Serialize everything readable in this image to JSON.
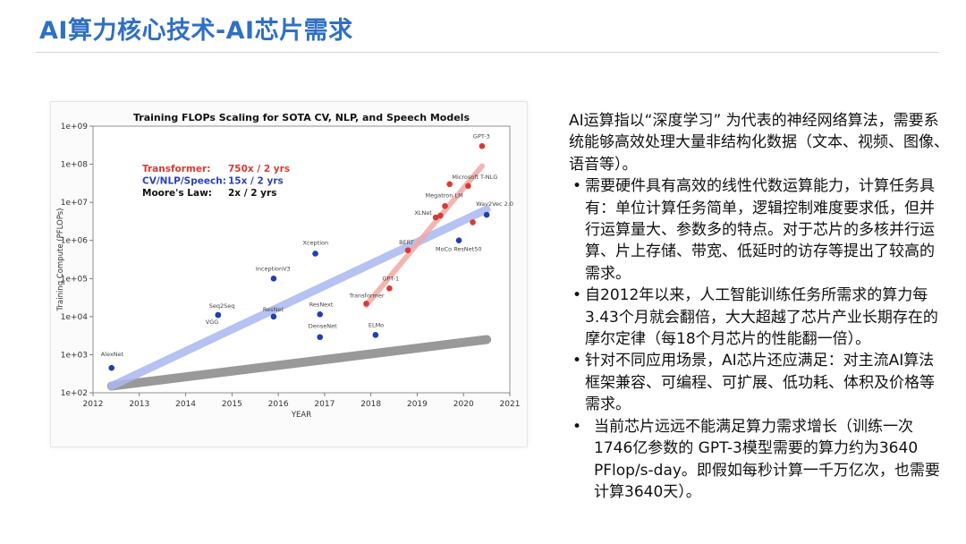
{
  "slide": {
    "title": "AI算力核心技术-AI芯片需求"
  },
  "text_panel": {
    "intro": "AI运算指以“深度学习” 为代表的神经网络算法，需要系统能够高效处理大量非结构化数据（文本、视频、图像、语音等）。",
    "bullets": [
      "需要硬件具有高效的线性代数运算能力，计算任务具有：单位计算任务简单，逻辑控制难度要求低，但并行运算量大、参数多的特点。对于芯片的多核并行运算、片上存储、带宽、低延时的访存等提出了较高的需求。",
      "自2012年以来，人工智能训练任务所需求的算力每3.43个月就会翻倍，大大超越了芯片产业长期存在的摩尔定律（每18个月芯片的性能翻一倍）。",
      "针对不同应用场景，AI芯片还应满足：对主流AI算法框架兼容、可编程、可扩展、低功耗、体积及价格等需求。",
      "当前芯片远远不能满足算力需求增长（训练一次1746亿参数的 GPT-3模型需要的算力约为3640 PFlop/s-day。即假如每秒计算一千万亿次，也需要计算3640天）。"
    ],
    "bullet_symbol": "•"
  },
  "chart_data": {
    "type": "scatter",
    "title": "Training FLOPs Scaling for SOTA CV, NLP, and Speech Models",
    "xlabel": "YEAR",
    "ylabel": "Training Compute (PFLOPs)",
    "xlim": [
      2012,
      2021
    ],
    "ylim_log10": [
      2,
      9
    ],
    "y_scale": "log",
    "x_ticks": [
      "2012",
      "2013",
      "2014",
      "2015",
      "2016",
      "2017",
      "2018",
      "2019",
      "2020",
      "2021"
    ],
    "y_ticks": [
      "1e+02",
      "1e+03",
      "1e+04",
      "1e+05",
      "1e+06",
      "1e+07",
      "1e+08",
      "1e+09"
    ],
    "legend": {
      "placement": "top-left",
      "entries": [
        {
          "label": "Transformer:",
          "rate": "750x / 2 yrs",
          "color": "#d93a34"
        },
        {
          "label": "CV/NLP/Speech:",
          "rate": "15x / 2 yrs",
          "color": "#2b43b4"
        },
        {
          "label": "Moore's Law:",
          "rate": "2x / 2 yrs",
          "color": "#111111"
        }
      ]
    },
    "series": [
      {
        "name": "CV/NLP/Speech",
        "color": "#1f3fb4",
        "points": [
          {
            "label": "AlexNet",
            "x": 2012.4,
            "y": 450
          },
          {
            "label": "VGG",
            "x": 2014.7,
            "y": 11000
          },
          {
            "label": "Seq2Seq",
            "x": 2014.7,
            "y": 11000
          },
          {
            "label": "InceptionV3",
            "x": 2015.9,
            "y": 100000
          },
          {
            "label": "ResNet",
            "x": 2015.9,
            "y": 10000
          },
          {
            "label": "Xception",
            "x": 2016.8,
            "y": 450000
          },
          {
            "label": "ResNext",
            "x": 2016.9,
            "y": 11500
          },
          {
            "label": "DenseNet",
            "x": 2016.9,
            "y": 2900
          },
          {
            "label": "ELMo",
            "x": 2018.1,
            "y": 3300
          },
          {
            "label": "MoCo ResNet50",
            "x": 2019.9,
            "y": 1000000
          },
          {
            "label": "Wav2Vec 2.0",
            "x": 2020.5,
            "y": 4700000
          }
        ]
      },
      {
        "name": "Transformer",
        "color": "#d93a34",
        "points": [
          {
            "label": "Transformer",
            "x": 2017.9,
            "y": 22000
          },
          {
            "label": "GPT-1",
            "x": 2018.4,
            "y": 55000
          },
          {
            "label": "BERT",
            "x": 2018.8,
            "y": 550000
          },
          {
            "label": "",
            "x": 2019.4,
            "y": 4000000
          },
          {
            "label": "XLNet",
            "x": 2019.5,
            "y": 4500000
          },
          {
            "label": "Megatron LM",
            "x": 2019.6,
            "y": 8000000
          },
          {
            "label": "",
            "x": 2019.7,
            "y": 30000000
          },
          {
            "label": "Microsoft T-NLG",
            "x": 2020.1,
            "y": 27000000
          },
          {
            "label": "",
            "x": 2020.2,
            "y": 3000000
          },
          {
            "label": "GPT-3",
            "x": 2020.4,
            "y": 300000000
          }
        ]
      }
    ],
    "trend_lines": [
      {
        "name": "Moore's Law",
        "color": "#888888",
        "from": {
          "x": 2012.4,
          "y": 150
        },
        "to": {
          "x": 2020.5,
          "y": 2500
        }
      },
      {
        "name": "CV/NLP/Speech",
        "color": "#a9b8f0",
        "from": {
          "x": 2012.4,
          "y": 150
        },
        "to": {
          "x": 2020.5,
          "y": 6500000
        }
      },
      {
        "name": "Transformer",
        "color": "#f2a9a5",
        "from": {
          "x": 2017.9,
          "y": 20000
        },
        "to": {
          "x": 2020.4,
          "y": 90000000
        }
      }
    ]
  }
}
